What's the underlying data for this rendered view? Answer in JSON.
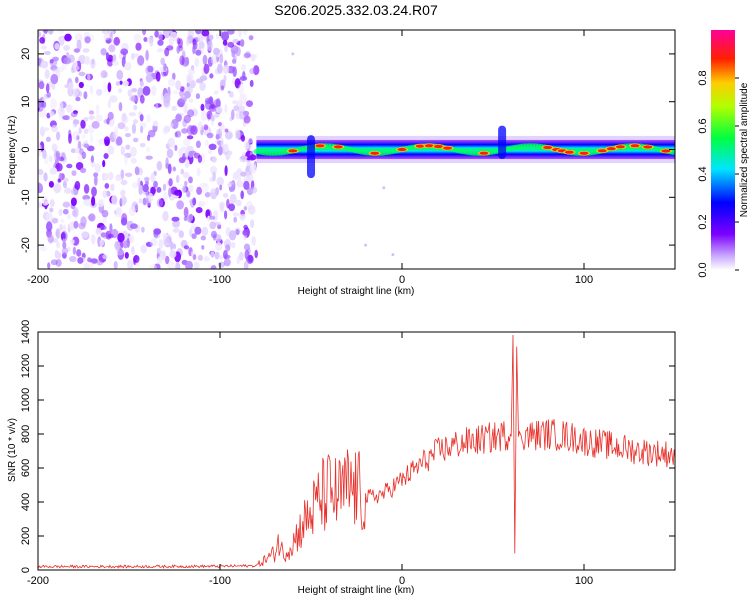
{
  "title": "S206.2025.332.03.24.R07",
  "chart_data": [
    {
      "type": "heatmap",
      "name": "spectrogram",
      "xlabel": "Height of straight line (km)",
      "ylabel": "Frequency (Hz)",
      "xlim": [
        -200,
        150
      ],
      "ylim": [
        -25,
        25
      ],
      "xticks": [
        -200,
        -100,
        0,
        100
      ],
      "yticks": [
        -20,
        -10,
        0,
        10,
        20
      ],
      "noise_region_x": [
        -200,
        -80
      ],
      "signal_band_hz": [
        -2,
        2
      ],
      "features": [
        {
          "x": -50,
          "f_low": -6,
          "f_high": 3
        },
        {
          "x": 55,
          "f_low": -2,
          "f_high": 5
        }
      ]
    },
    {
      "type": "line",
      "name": "snr",
      "xlabel": "Height of straight line (km)",
      "ylabel": "SNR (10 * v/v)",
      "xlim": [
        -200,
        150
      ],
      "ylim": [
        0,
        1400
      ],
      "xticks": [
        -200,
        -100,
        0,
        100
      ],
      "yticks": [
        0,
        200,
        400,
        600,
        800,
        1000,
        1200,
        1400
      ],
      "series": [
        {
          "name": "SNR",
          "color": "#e8302a",
          "x": [
            -200,
            -150,
            -100,
            -80,
            -70,
            -68,
            -65,
            -60,
            -55,
            -50,
            -45,
            -40,
            -35,
            -30,
            -25,
            -20,
            -10,
            0,
            10,
            20,
            30,
            40,
            50,
            55,
            60,
            61,
            62,
            63,
            64,
            70,
            80,
            90,
            100,
            110,
            120,
            130,
            140,
            150
          ],
          "y": [
            20,
            20,
            22,
            25,
            100,
            170,
            90,
            160,
            260,
            330,
            420,
            460,
            430,
            480,
            470,
            420,
            450,
            530,
            620,
            700,
            740,
            760,
            780,
            790,
            800,
            1400,
            100,
            1300,
            800,
            790,
            800,
            790,
            760,
            740,
            720,
            700,
            690,
            680
          ]
        }
      ],
      "peak_annotation": {
        "x": 62,
        "max": 1400,
        "min": 100
      }
    }
  ],
  "colorbar": {
    "label": "Normalized spectral amplitude",
    "ticks": [
      "0.0",
      "0.2",
      "0.4",
      "0.6",
      "0.8"
    ],
    "range": [
      0,
      1
    ],
    "colors": [
      "#ffffff",
      "#7b00ff",
      "#0000ff",
      "#00ffff",
      "#00ff00",
      "#ffff00",
      "#ff0000",
      "#ff00aa"
    ]
  }
}
